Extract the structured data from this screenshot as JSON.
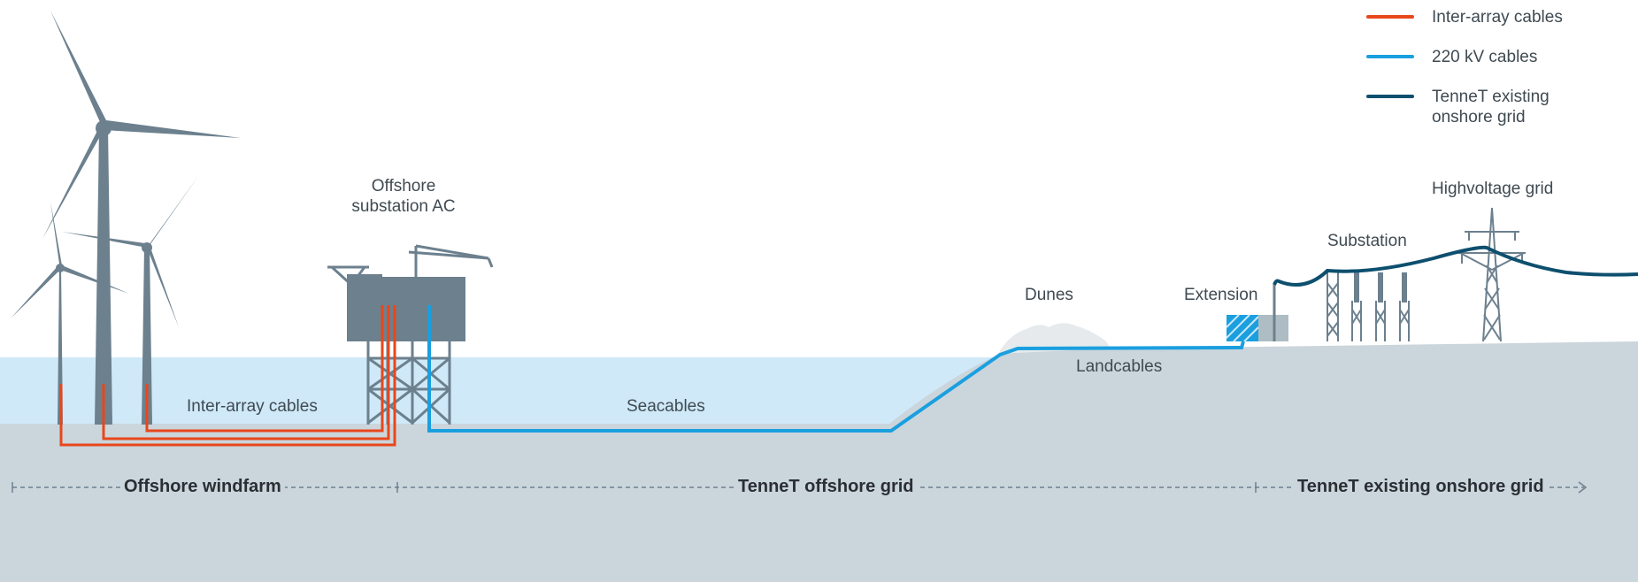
{
  "colors": {
    "inter_array": "#e8471b",
    "cable_220kv": "#1a9fdf",
    "onshore_grid": "#0d4f6e",
    "sea": "#cfe9f8",
    "ground": "#cbd5dc",
    "structure": "#6c808e"
  },
  "legend": [
    {
      "label": "Inter-array cables",
      "color": "#e8471b"
    },
    {
      "label": "220 kV cables",
      "color": "#1a9fdf"
    },
    {
      "label": "TenneT existing\nonshore grid",
      "color": "#0d4f6e"
    }
  ],
  "labels": {
    "offshore_substation": "Offshore\nsubstation AC",
    "inter_array_cables": "Inter-array cables",
    "seacables": "Seacables",
    "dunes": "Dunes",
    "extension": "Extension",
    "landcables": "Landcables",
    "substation": "Substation",
    "highvoltage_grid": "Highvoltage grid"
  },
  "sections": {
    "offshore_windfarm": "Offshore windfarm",
    "tennet_offshore_grid": "TenneT offshore grid",
    "tennet_existing_onshore_grid": "TenneT existing onshore grid"
  }
}
